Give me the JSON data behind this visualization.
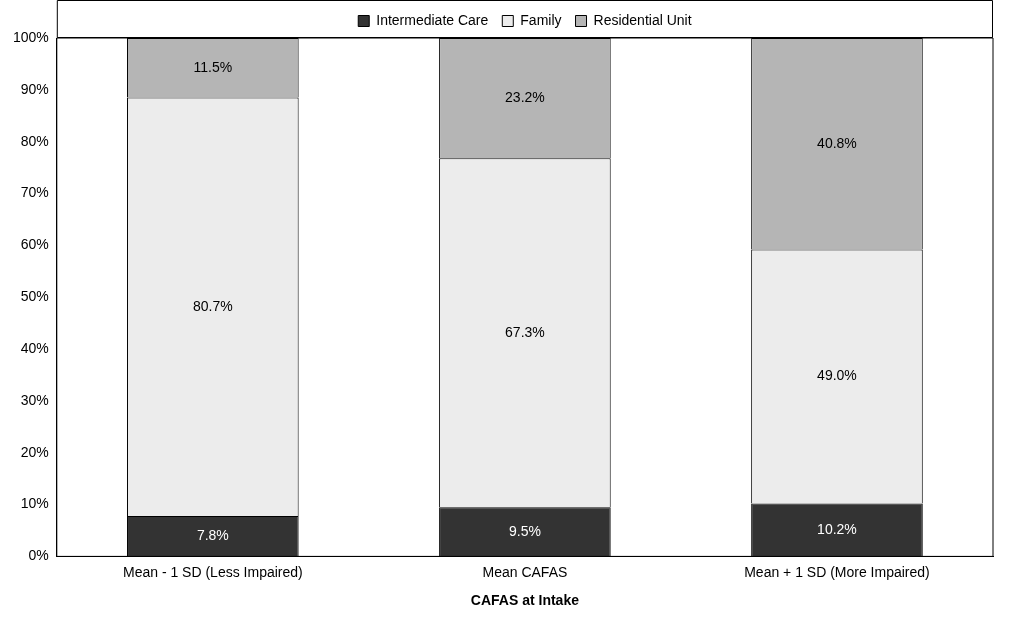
{
  "chart_data": {
    "type": "bar",
    "stacked": true,
    "xlabel": "CAFAS at Intake",
    "categories": [
      "Mean - 1 SD (Less Impaired)",
      "Mean CAFAS",
      "Mean + 1 SD (More Impaired)"
    ],
    "series": [
      {
        "name": "Intermediate Care",
        "color": "#333333",
        "values": [
          7.8,
          9.5,
          10.2
        ],
        "value_labels": [
          "7.8%",
          "9.5%",
          "10.2%"
        ]
      },
      {
        "name": "Family",
        "color": "#ececec",
        "values": [
          80.7,
          67.3,
          49.0
        ],
        "value_labels": [
          "80.7%",
          "67.3%",
          "49.0%"
        ]
      },
      {
        "name": "Residential Unit",
        "color": "#b5b5b5",
        "values": [
          11.5,
          23.2,
          40.8
        ],
        "value_labels": [
          "11.5%",
          "23.2%",
          "40.8%"
        ]
      }
    ],
    "ylim": [
      0,
      100
    ],
    "yticks": [
      {
        "value": 0,
        "label": "0%"
      },
      {
        "value": 10,
        "label": "10%"
      },
      {
        "value": 20,
        "label": "20%"
      },
      {
        "value": 30,
        "label": "30%"
      },
      {
        "value": 40,
        "label": "40%"
      },
      {
        "value": 50,
        "label": "50%"
      },
      {
        "value": 60,
        "label": "60%"
      },
      {
        "value": 70,
        "label": "70%"
      },
      {
        "value": 80,
        "label": "80%"
      },
      {
        "value": 90,
        "label": "90%"
      },
      {
        "value": 100,
        "label": "100%"
      }
    ],
    "grid": false,
    "legend": "top"
  }
}
